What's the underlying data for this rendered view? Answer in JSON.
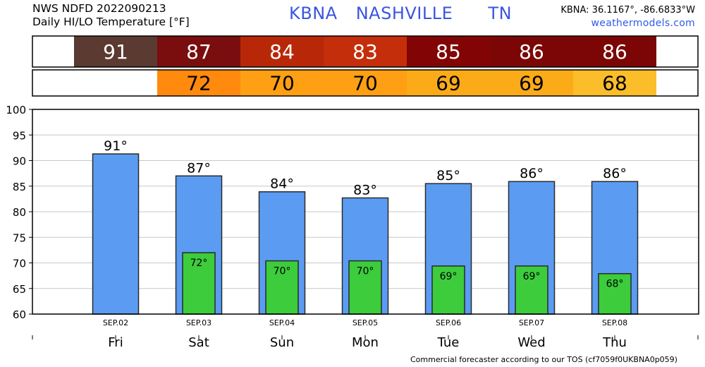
{
  "header": {
    "line1": "NWS NDFD 2022090213",
    "line2": "Daily HI/LO Temperature [°F]",
    "station": "KBNA",
    "city": "NASHVILLE",
    "state": "TN",
    "coords": "KBNA: 36.1167°, -86.6833°W",
    "site": "weathermodels.com"
  },
  "footer": "Commercial forecaster according to our TOS (cf7059f0UKBNA0p059)",
  "colors": {
    "high_bar": "#5b9cf2",
    "low_bar": "#3ccc3c",
    "high_strip": [
      "#5a3a31",
      "#7a0e0e",
      "#b82808",
      "#c42e0a",
      "#820404",
      "#7c0606",
      "#7c0606"
    ],
    "low_strip": [
      null,
      "#ff8a0e",
      "#ff9f14",
      "#ff9f14",
      "#fbab18",
      "#fbab18",
      "#fbbd2a"
    ]
  },
  "chart_data": {
    "type": "bar",
    "categories": [
      "Fri",
      "Sat",
      "Sun",
      "Mon",
      "Tue",
      "Wed",
      "Thu"
    ],
    "dates": [
      "SEP.02",
      "SEP.03",
      "SEP.04",
      "SEP.05",
      "SEP.06",
      "SEP.07",
      "SEP.08"
    ],
    "series": [
      {
        "values": [
          91.3,
          87.0,
          83.9,
          82.7,
          85.5,
          85.9,
          85.9
        ]
      },
      {
        "values": [
          null,
          72.0,
          70.4,
          70.4,
          69.4,
          69.4,
          67.9
        ]
      }
    ],
    "high_labels": [
      "91°",
      "87°",
      "84°",
      "83°",
      "85°",
      "86°",
      "86°"
    ],
    "low_labels": [
      "",
      "72°",
      "70°",
      "70°",
      "69°",
      "69°",
      "68°"
    ],
    "high_strip_values": [
      "91",
      "87",
      "84",
      "83",
      "85",
      "86",
      "86"
    ],
    "low_strip_values": [
      "",
      "72",
      "70",
      "70",
      "69",
      "69",
      "68"
    ],
    "ylim": [
      60,
      100
    ],
    "yticks": [
      60,
      65,
      70,
      75,
      80,
      85,
      90,
      95,
      100
    ],
    "grid": true
  }
}
